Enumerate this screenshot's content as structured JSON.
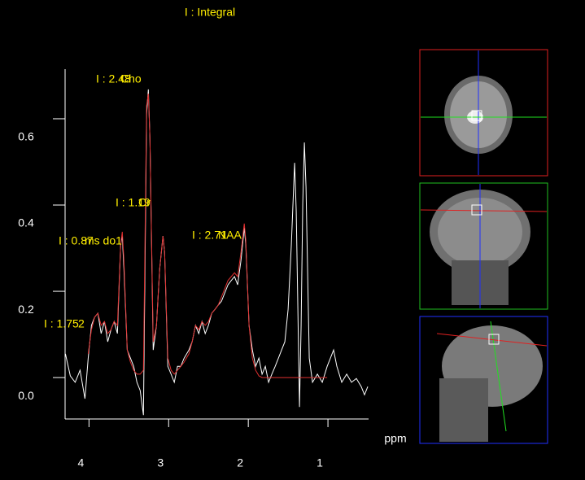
{
  "chart_data": {
    "type": "line",
    "title": "I : Integral",
    "x_label": "ppm",
    "xlim": [
      4.3,
      0.49
    ],
    "ylim": [
      -0.096,
      0.715
    ],
    "xticks": [
      4,
      3,
      2,
      1
    ],
    "yticks": [
      {
        "value": 0,
        "label": "0.0"
      },
      0.2,
      0.4,
      0.6
    ],
    "x": [
      4.296,
      4.235,
      4.173,
      4.112,
      4.051,
      4.01,
      3.969,
      3.929,
      3.888,
      3.847,
      3.806,
      3.765,
      3.724,
      3.684,
      3.643,
      3.602,
      3.582,
      3.561,
      3.52,
      3.48,
      3.439,
      3.398,
      3.357,
      3.316,
      3.276,
      3.255,
      3.235,
      3.194,
      3.153,
      3.112,
      3.071,
      3.051,
      3.01,
      2.969,
      2.929,
      2.888,
      2.847,
      2.806,
      2.745,
      2.704,
      2.663,
      2.622,
      2.582,
      2.541,
      2.5,
      2.459,
      2.418,
      2.378,
      2.337,
      2.296,
      2.255,
      2.214,
      2.173,
      2.133,
      2.092,
      2.051,
      2.031,
      1.99,
      1.949,
      1.908,
      1.867,
      1.827,
      1.786,
      1.745,
      1.704,
      1.663,
      1.622,
      1.582,
      1.541,
      1.5,
      1.459,
      1.418,
      1.398,
      1.357,
      1.337,
      1.316,
      1.296,
      1.276,
      1.235,
      1.194,
      1.133,
      1.071,
      1.01,
      0.969,
      0.929,
      0.888,
      0.827,
      0.765,
      0.704,
      0.643,
      0.582,
      0.541,
      0.5
    ],
    "series": [
      {
        "color": "#ffffff",
        "values": [
          0.055,
          0.004,
          -0.011,
          0.017,
          -0.049,
          0.045,
          0.121,
          0.14,
          0.149,
          0.102,
          0.13,
          0.083,
          0.111,
          0.13,
          0.102,
          0.309,
          0.328,
          0.253,
          0.064,
          0.045,
          0.026,
          -0.011,
          -0.03,
          -0.087,
          0.611,
          0.668,
          0.555,
          0.064,
          0.121,
          0.253,
          0.328,
          0.291,
          0.026,
          0.008,
          -0.011,
          0.026,
          0.026,
          0.045,
          0.064,
          0.083,
          0.121,
          0.102,
          0.13,
          0.102,
          0.121,
          0.149,
          0.158,
          0.168,
          0.177,
          0.196,
          0.215,
          0.225,
          0.234,
          0.215,
          0.272,
          0.347,
          0.309,
          0.121,
          0.064,
          0.026,
          0.045,
          0.008,
          0.026,
          -0.011,
          0.008,
          0.026,
          0.045,
          0.064,
          0.083,
          0.158,
          0.309,
          0.498,
          0.385,
          -0.068,
          0.121,
          0.404,
          0.545,
          0.442,
          0.045,
          -0.011,
          0.008,
          -0.011,
          0.026,
          0.045,
          0.064,
          0.026,
          -0.011,
          0.008,
          -0.011,
          -0.002,
          -0.021,
          -0.04,
          -0.021
        ]
      },
      {
        "color": "#e03030",
        "values": [
          null,
          null,
          null,
          null,
          null,
          0.055,
          0.111,
          0.14,
          0.149,
          0.121,
          0.13,
          0.102,
          0.111,
          0.13,
          0.121,
          0.309,
          0.338,
          0.272,
          0.064,
          0.036,
          0.017,
          0.008,
          0.008,
          0.017,
          0.63,
          0.658,
          0.555,
          0.083,
          0.121,
          0.253,
          0.328,
          0.291,
          0.045,
          0.017,
          0.008,
          0.017,
          0.026,
          0.036,
          0.055,
          0.083,
          0.121,
          0.111,
          0.13,
          0.121,
          0.13,
          0.149,
          0.158,
          0.168,
          0.187,
          0.206,
          0.225,
          0.234,
          0.243,
          0.234,
          0.291,
          0.357,
          0.319,
          0.121,
          0.045,
          0.017,
          0.004,
          0,
          0,
          0,
          0,
          0,
          0,
          0,
          0,
          0,
          0,
          0,
          0,
          0,
          0,
          0,
          0,
          0,
          0,
          0,
          0,
          0,
          0,
          null,
          null,
          null,
          null,
          null,
          null,
          null,
          null,
          null,
          null
        ]
      }
    ],
    "annotations": [
      "I : 2.48",
      "Cho",
      "I : 1.19",
      "Cr",
      "I : 0.87",
      "ms do1",
      "I : 2.71",
      "NAA",
      "I : 1.75",
      "2"
    ]
  }
}
